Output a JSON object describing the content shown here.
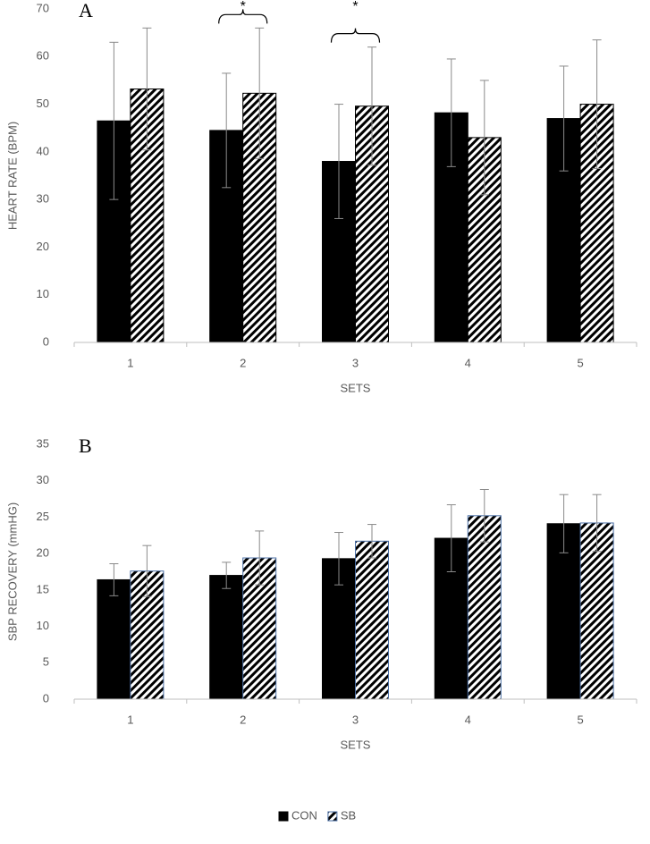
{
  "chart_data": [
    {
      "type": "bar",
      "panel_label": "A",
      "ylabel": "HEART RATE (BPM)",
      "xlabel": "SETS",
      "categories": [
        "1",
        "2",
        "3",
        "4",
        "5"
      ],
      "ylim": [
        0,
        70
      ],
      "yticks": [
        0,
        10,
        20,
        30,
        40,
        50,
        60,
        70
      ],
      "series": [
        {
          "color": "#000000",
          "pattern": "solid",
          "values": [
            46.5,
            44.5,
            38,
            48.2,
            47
          ],
          "errors": [
            16.5,
            12,
            12,
            11.3,
            11
          ]
        },
        {
          "color": "#000000",
          "pattern": "hatch",
          "values": [
            53.2,
            52.3,
            49.6,
            43,
            50
          ],
          "errors": [
            12.8,
            13.7,
            12.4,
            12,
            13.5
          ]
        }
      ],
      "annotations": [
        {
          "text": "*",
          "x": "2"
        },
        {
          "text": "*",
          "x": "3"
        }
      ]
    },
    {
      "type": "bar",
      "panel_label": "B",
      "ylabel": "SBP RECOVERY (mmHG)",
      "xlabel": "SETS",
      "categories": [
        "1",
        "2",
        "3",
        "4",
        "5"
      ],
      "ylim": [
        0,
        35
      ],
      "yticks": [
        0,
        5,
        10,
        15,
        20,
        25,
        30,
        35
      ],
      "series": [
        {
          "name": "CON",
          "color": "#000000",
          "pattern": "solid",
          "values": [
            16.4,
            17,
            19.3,
            22.1,
            24.1
          ],
          "errors": [
            2.2,
            1.8,
            3.6,
            4.6,
            4
          ]
        },
        {
          "name": "SB",
          "color": "#000000",
          "pattern": "hatch",
          "edgecolor": "#4a6fa5",
          "values": [
            17.6,
            19.4,
            21.7,
            25.2,
            24.2
          ],
          "errors": [
            3.5,
            3.7,
            2.3,
            3.6,
            3.9
          ]
        }
      ]
    }
  ]
}
